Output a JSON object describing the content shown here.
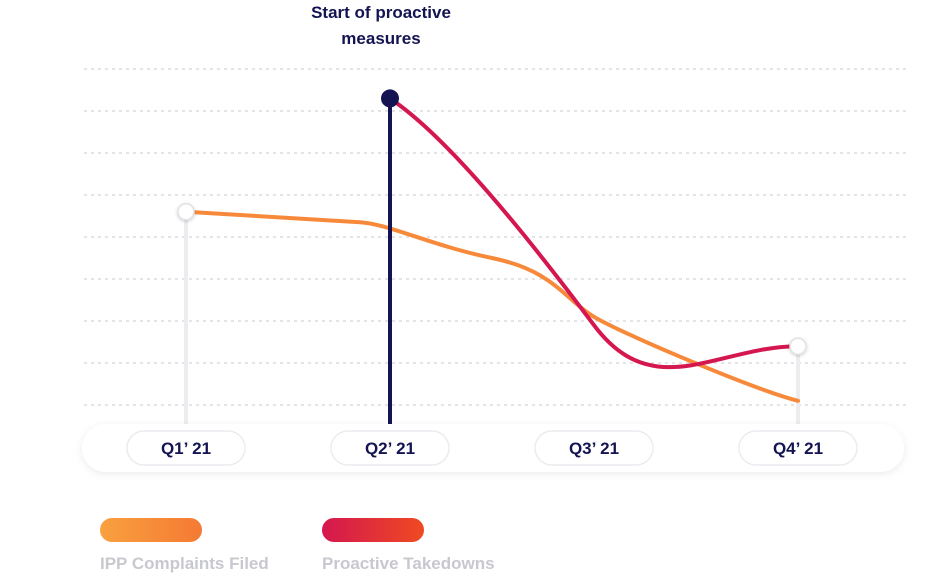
{
  "chart_data": {
    "type": "line",
    "categories": [
      "Q1’ 21",
      "Q2’ 21",
      "Q3’ 21",
      "Q4’ 21"
    ],
    "series": [
      {
        "name": "IPP Complaints Filed",
        "x": [
          1,
          2,
          2.5,
          3,
          4
        ],
        "values": [
          4.6,
          4.4,
          3.5,
          2.1,
          0.1
        ],
        "color": "#f7893a"
      },
      {
        "name": "Proactive Takedowns",
        "x": [
          2,
          3,
          4
        ],
        "values": [
          7.3,
          1.9,
          1.4
        ],
        "color": "#d4174f"
      }
    ],
    "ylim": [
      0,
      8
    ],
    "grid": true,
    "annotation": {
      "text": [
        "Start of proactive",
        "measures"
      ],
      "x": 2,
      "color": "#141452"
    },
    "legend_position": "bottom-left",
    "colors": {
      "legend_orange": "#f7893a",
      "legend_red": "#e8294a",
      "legend_text": "#c8c8cf",
      "axis_text": "#141452"
    }
  }
}
